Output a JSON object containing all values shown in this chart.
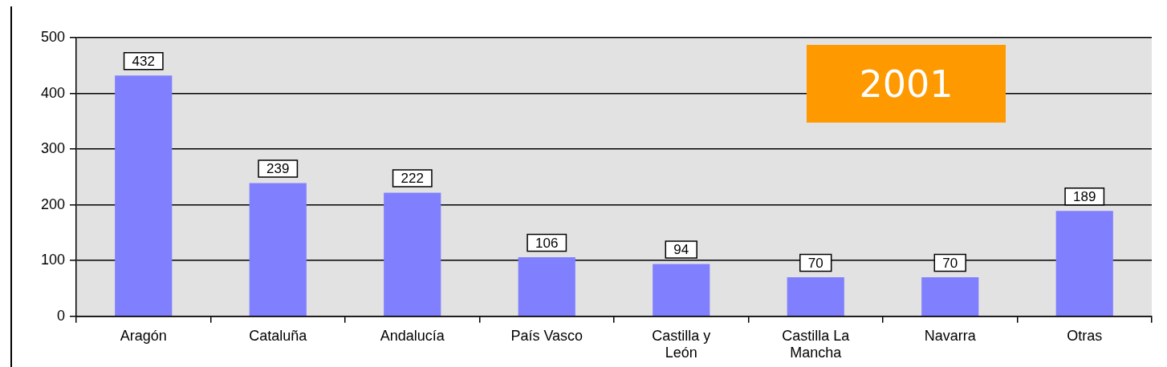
{
  "chart_data": {
    "type": "bar",
    "categories": [
      "Aragón",
      "Cataluña",
      "Andalucía",
      "País Vasco",
      "Castilla y León",
      "Castilla La Mancha",
      "Navarra",
      "Otras"
    ],
    "values": [
      432,
      239,
      222,
      106,
      94,
      70,
      70,
      189
    ],
    "color": "#8080ff",
    "ylim": [
      0,
      500
    ],
    "yticks": [
      0,
      100,
      200,
      300,
      400,
      500
    ],
    "grid": "y",
    "legend": false,
    "data_labels": true,
    "annotations": [
      "2001"
    ]
  }
}
